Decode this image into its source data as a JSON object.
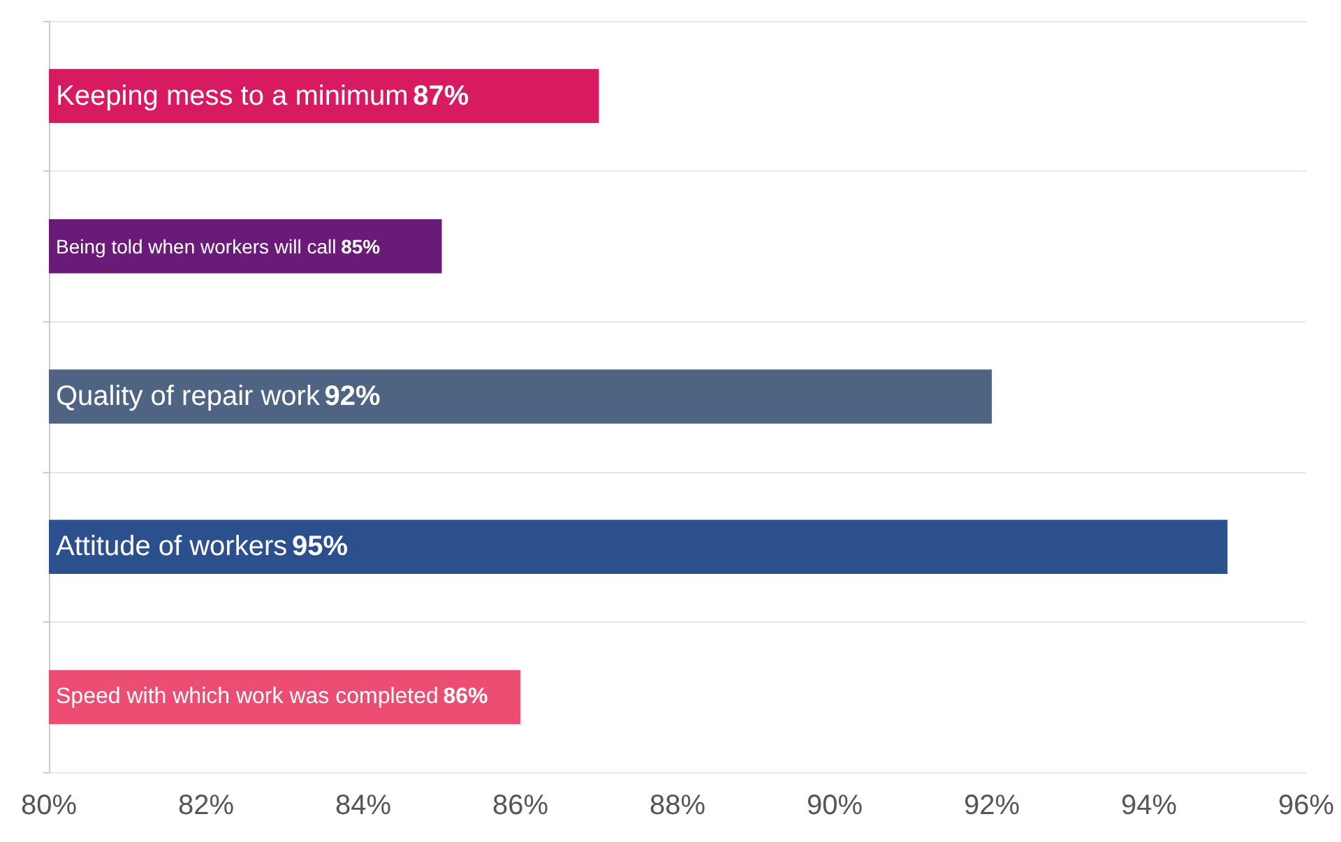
{
  "chart_data": {
    "type": "bar",
    "orientation": "horizontal",
    "categories": [
      "Keeping mess to a minimum",
      "Being told when workers will call",
      "Quality of repair work",
      "Attitude of workers",
      "Speed with which work was completed"
    ],
    "values": [
      87,
      85,
      92,
      95,
      86
    ],
    "value_labels": [
      "87%",
      "85%",
      "92%",
      "95%",
      "86%"
    ],
    "colors": [
      "#d81b60",
      "#6a1b78",
      "#4f6382",
      "#2c4f8e",
      "#ec4d72"
    ],
    "xlim": [
      80,
      96
    ],
    "xticks": [
      {
        "value": 80,
        "label": "80%"
      },
      {
        "value": 82,
        "label": "82%"
      },
      {
        "value": 84,
        "label": "84%"
      },
      {
        "value": 86,
        "label": "86%"
      },
      {
        "value": 88,
        "label": "88%"
      },
      {
        "value": 90,
        "label": "90%"
      },
      {
        "value": 92,
        "label": "92%"
      },
      {
        "value": 94,
        "label": "94%"
      },
      {
        "value": 96,
        "label": "96%"
      }
    ],
    "grid": "y"
  }
}
